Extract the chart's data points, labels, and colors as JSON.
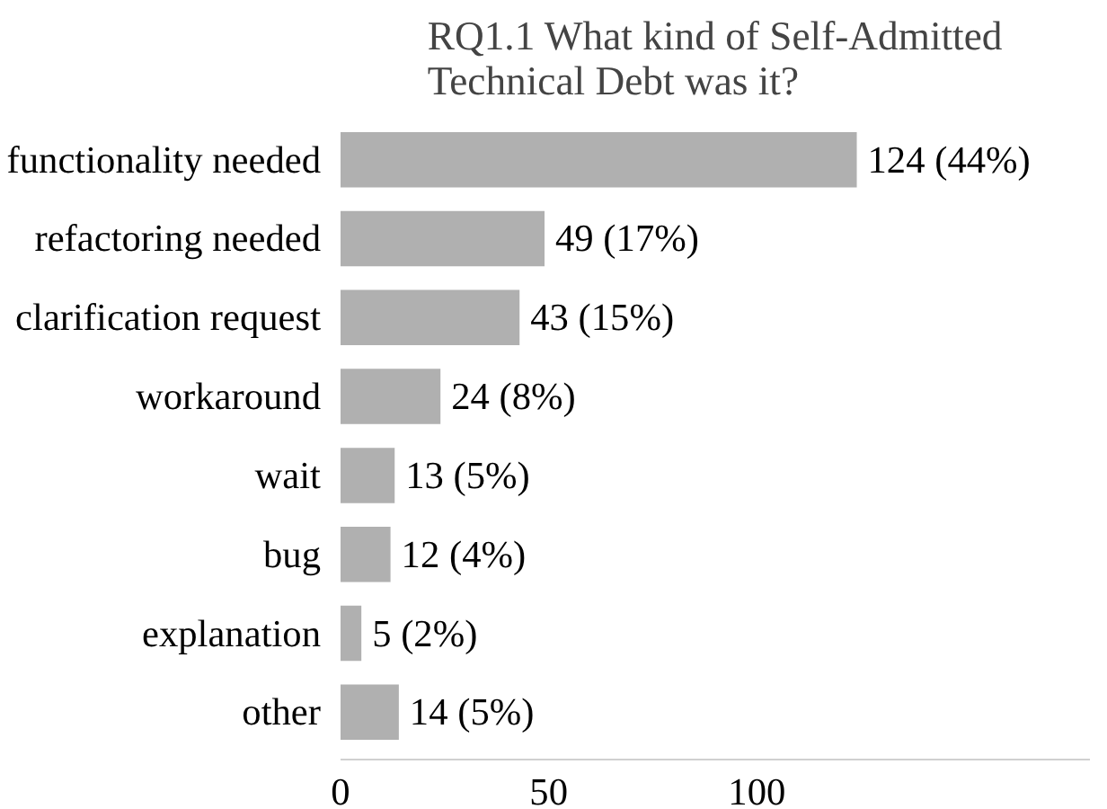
{
  "chart_data": {
    "type": "bar",
    "orientation": "horizontal",
    "title": "RQ1.1 What kind of Self-Admitted Technical Debt was it?",
    "categories": [
      "functionality needed",
      "refactoring needed",
      "clarification request",
      "workaround",
      "wait",
      "bug",
      "explanation",
      "other"
    ],
    "values": [
      124,
      49,
      43,
      24,
      13,
      12,
      5,
      14
    ],
    "value_labels": [
      "124 (44%)",
      "49 (17%)",
      "43 (15%)",
      "24 (8%)",
      "13 (5%)",
      "12 (4%)",
      "5 (2%)",
      "14 (5%)"
    ],
    "color": "#b0b0b0",
    "xlim": [
      0,
      180
    ],
    "xticks": [
      0,
      50,
      100
    ],
    "grid": false
  }
}
